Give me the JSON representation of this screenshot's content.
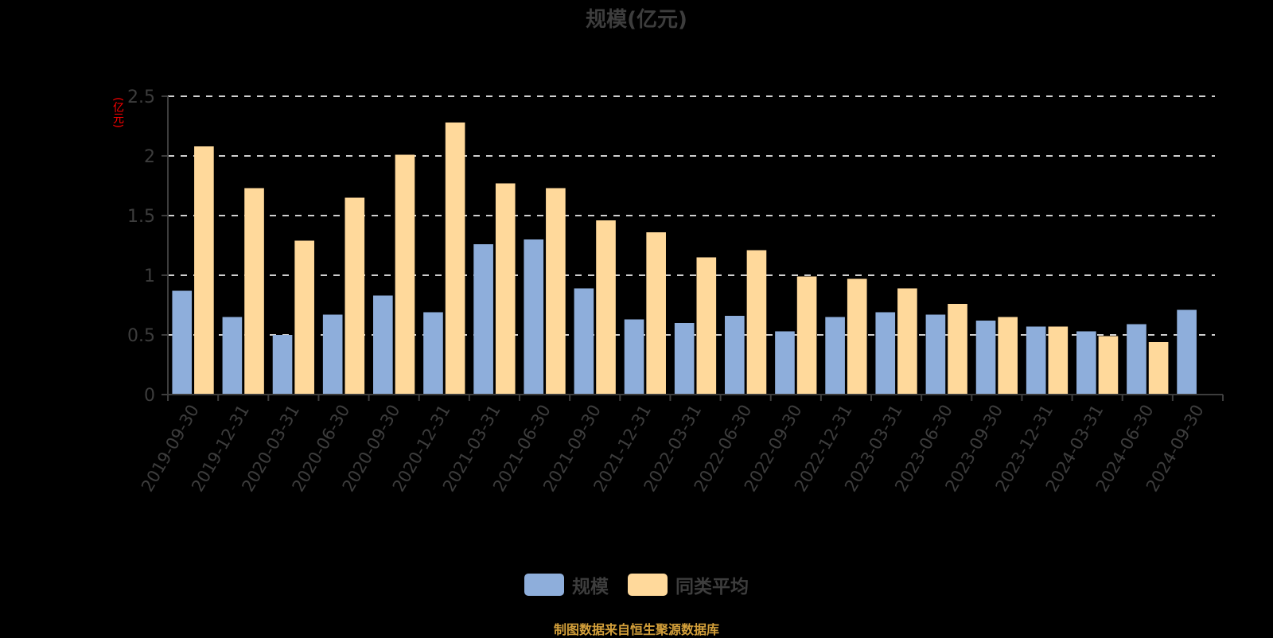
{
  "title": "规模(亿元)",
  "y_unit_label": "(亿元)",
  "footer": "制图数据来自恒生聚源数据库",
  "colors": {
    "scale": "#8eaedb",
    "peer_avg": "#ffd99b",
    "axis": "#3d3d3d",
    "grid": "#cfcfcf",
    "tick_text": "#3d3d3d",
    "unit_text": "#ff0000",
    "footer": "#d4a03a"
  },
  "legend": [
    {
      "name": "规模",
      "color": "#8eaedb"
    },
    {
      "name": "同类平均",
      "color": "#ffd99b"
    }
  ],
  "chart_data": {
    "type": "bar",
    "title": "规模(亿元)",
    "xlabel": "",
    "ylabel": "(亿元)",
    "ylim": [
      0,
      2.5
    ],
    "yticks": [
      0,
      0.5,
      1,
      1.5,
      2,
      2.5
    ],
    "ytick_labels": [
      "0",
      "0.5",
      "1",
      "1.5",
      "2",
      "2.5"
    ],
    "grid": true,
    "legend_position": "bottom",
    "categories": [
      "2019-09-30",
      "2019-12-31",
      "2020-03-31",
      "2020-06-30",
      "2020-09-30",
      "2020-12-31",
      "2021-03-31",
      "2021-06-30",
      "2021-09-30",
      "2021-12-31",
      "2022-03-31",
      "2022-06-30",
      "2022-09-30",
      "2022-12-31",
      "2023-03-31",
      "2023-06-30",
      "2023-09-30",
      "2023-12-31",
      "2024-03-31",
      "2024-06-30",
      "2024-09-30"
    ],
    "series": [
      {
        "name": "规模",
        "values": [
          0.87,
          0.65,
          0.5,
          0.67,
          0.83,
          0.69,
          1.26,
          1.3,
          0.89,
          0.63,
          0.6,
          0.66,
          0.53,
          0.65,
          0.69,
          0.67,
          0.62,
          0.57,
          0.53,
          0.59,
          0.71
        ]
      },
      {
        "name": "同类平均",
        "values": [
          2.08,
          1.73,
          1.29,
          1.65,
          2.01,
          2.28,
          1.77,
          1.73,
          1.46,
          1.36,
          1.15,
          1.21,
          0.99,
          0.97,
          0.89,
          0.76,
          0.65,
          0.57,
          0.49,
          0.44,
          null
        ]
      }
    ]
  }
}
